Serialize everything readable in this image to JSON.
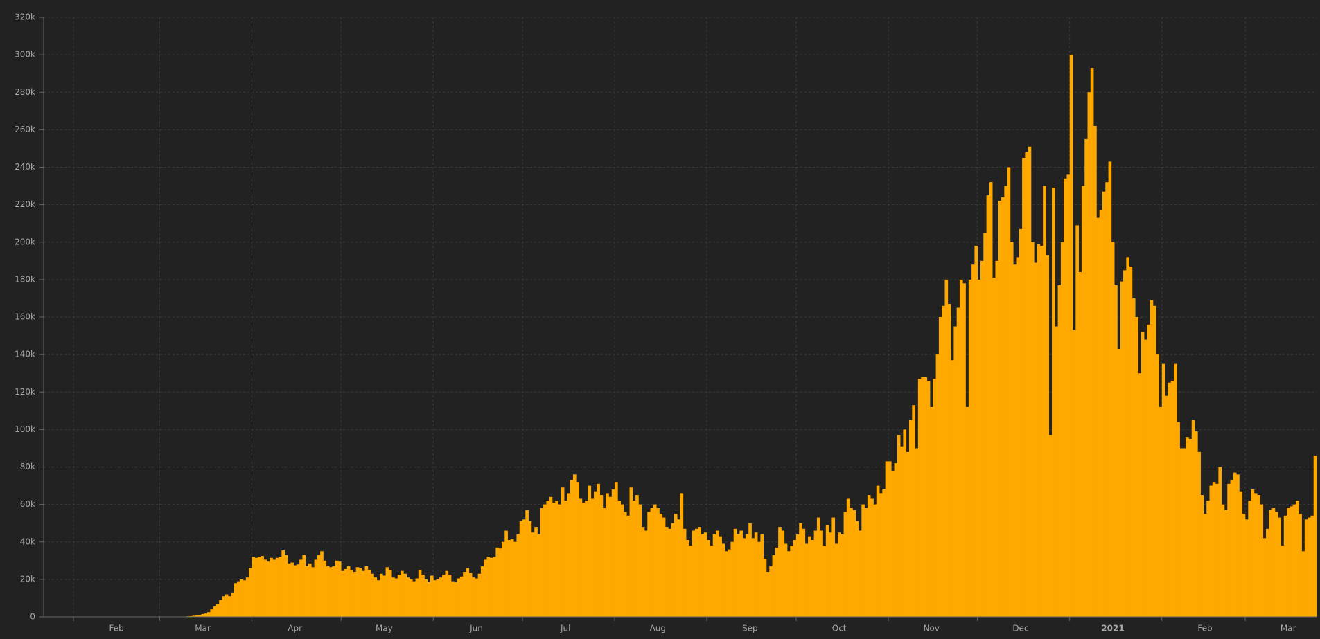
{
  "chart_data": {
    "type": "bar",
    "color": "#fea800",
    "background": "#222222",
    "grid": true,
    "ylim": [
      0,
      320000
    ],
    "yticks": [
      {
        "value": 0,
        "label": "0"
      },
      {
        "value": 20000,
        "label": "20k"
      },
      {
        "value": 40000,
        "label": "40k"
      },
      {
        "value": 60000,
        "label": "60k"
      },
      {
        "value": 80000,
        "label": "80k"
      },
      {
        "value": 100000,
        "label": "100k"
      },
      {
        "value": 120000,
        "label": "120k"
      },
      {
        "value": 140000,
        "label": "140k"
      },
      {
        "value": 160000,
        "label": "160k"
      },
      {
        "value": 180000,
        "label": "180k"
      },
      {
        "value": 200000,
        "label": "200k"
      },
      {
        "value": 220000,
        "label": "220k"
      },
      {
        "value": 240000,
        "label": "240k"
      },
      {
        "value": 260000,
        "label": "260k"
      },
      {
        "value": 280000,
        "label": "280k"
      },
      {
        "value": 300000,
        "label": "300k"
      },
      {
        "value": 320000,
        "label": "320k"
      }
    ],
    "categories": [
      null,
      null,
      null,
      null,
      null,
      null,
      null,
      null,
      null,
      null,
      null,
      null,
      null,
      null,
      null,
      null,
      null,
      null,
      null,
      null,
      null,
      null,
      null,
      null,
      "Feb",
      null,
      null,
      null,
      null,
      null,
      null,
      null,
      null,
      null,
      null,
      null,
      null,
      null,
      null,
      null,
      null,
      null,
      null,
      null,
      null,
      null,
      null,
      null,
      null,
      null,
      null,
      null,
      null,
      "Mar",
      null,
      null,
      null,
      null,
      null,
      null,
      null,
      null,
      null,
      null,
      null,
      null,
      null,
      null,
      null,
      null,
      null,
      null,
      null,
      null,
      null,
      null,
      null,
      null,
      null,
      null,
      null,
      null,
      null,
      null,
      "Apr",
      null,
      null,
      null,
      null,
      null,
      null,
      null,
      null,
      null,
      null,
      null,
      null,
      null,
      null,
      null,
      null,
      null,
      null,
      null,
      null,
      null,
      null,
      null,
      null,
      null,
      null,
      null,
      null,
      null,
      "May",
      null,
      null,
      null,
      null,
      null,
      null,
      null,
      null,
      null,
      null,
      null,
      null,
      null,
      null,
      null,
      null,
      null,
      null,
      null,
      null,
      null,
      null,
      null,
      null,
      null,
      null,
      null,
      null,
      null,
      null,
      "Jun",
      null,
      null,
      null,
      null,
      null,
      null,
      null,
      null,
      null,
      null,
      null,
      null,
      null,
      null,
      null,
      null,
      null,
      null,
      null,
      null,
      null,
      null,
      null,
      null,
      null,
      null,
      null,
      null,
      null,
      "Jul",
      null,
      null,
      null,
      null,
      null,
      null,
      null,
      null,
      null,
      null,
      null,
      null,
      null,
      null,
      null,
      null,
      null,
      null,
      null,
      null,
      null,
      null,
      null,
      null,
      null,
      null,
      null,
      null,
      null,
      null,
      "Aug",
      null,
      null,
      null,
      null,
      null,
      null,
      null,
      null,
      null,
      null,
      null,
      null,
      null,
      null,
      null,
      null,
      null,
      null,
      null,
      null,
      null,
      null,
      null,
      null,
      null,
      null,
      null,
      null,
      null,
      null,
      "Sep",
      null,
      null,
      null,
      null,
      null,
      null,
      null,
      null,
      null,
      null,
      null,
      null,
      null,
      null,
      null,
      null,
      null,
      null,
      null,
      null,
      null,
      null,
      null,
      null,
      null,
      null,
      null,
      null,
      null,
      "Oct",
      null,
      null,
      null,
      null,
      null,
      null,
      null,
      null,
      null,
      null,
      null,
      null,
      null,
      null,
      null,
      null,
      null,
      null,
      null,
      null,
      null,
      null,
      null,
      null,
      null,
      null,
      null,
      null,
      null,
      null,
      "Nov",
      null,
      null,
      null,
      null,
      null,
      null,
      null,
      null,
      null,
      null,
      null,
      null,
      null,
      null,
      null,
      null,
      null,
      null,
      null,
      null,
      null,
      null,
      null,
      null,
      null,
      null,
      null,
      null,
      null,
      "Dec",
      null,
      null,
      null,
      null,
      null,
      null,
      null,
      null,
      null,
      null,
      null,
      null,
      null,
      null,
      null,
      null,
      null,
      null,
      null,
      null,
      null,
      null,
      null,
      null,
      null,
      null,
      null,
      null,
      null,
      null,
      "2021",
      null,
      null,
      null,
      null,
      null,
      null,
      null,
      null,
      null,
      null,
      null,
      null,
      null,
      null,
      null,
      null,
      null,
      null,
      null,
      null,
      null,
      null,
      null,
      null,
      null,
      null,
      null,
      null,
      null,
      null,
      "Feb",
      null,
      null,
      null,
      null,
      null,
      null,
      null,
      null,
      null,
      null,
      null,
      null,
      null,
      null,
      null,
      null,
      null,
      null,
      null,
      null,
      null,
      null,
      null,
      null,
      null,
      null,
      null,
      "Mar",
      null,
      null,
      null,
      null,
      null,
      null,
      null,
      null,
      null
    ],
    "values": [
      0,
      0,
      0,
      0,
      0,
      0,
      0,
      0,
      0,
      0,
      0,
      0,
      0,
      0,
      0,
      0,
      0,
      0,
      0,
      0,
      0,
      0,
      0,
      0,
      0,
      0,
      0,
      0,
      0,
      0,
      0,
      0,
      0,
      0,
      0,
      0,
      0,
      0,
      0,
      0,
      0,
      0,
      0,
      100,
      100,
      100,
      200,
      200,
      300,
      400,
      600,
      800,
      1000,
      1500,
      1800,
      2500,
      4000,
      5500,
      7000,
      9000,
      11000,
      12000,
      11000,
      13000,
      18000,
      19000,
      20000,
      19500,
      21000,
      26000,
      32000,
      31500,
      32000,
      32500,
      30500,
      29500,
      31500,
      30500,
      31500,
      32000,
      35500,
      33000,
      28500,
      29000,
      27500,
      28000,
      30500,
      33000,
      27000,
      28500,
      26500,
      30500,
      33000,
      35000,
      30000,
      27000,
      26500,
      27000,
      30000,
      29500,
      24500,
      25500,
      27000,
      25000,
      24000,
      26500,
      26000,
      24500,
      27000,
      25000,
      23000,
      21000,
      19500,
      23000,
      22000,
      26500,
      25000,
      21000,
      20500,
      22500,
      24500,
      23000,
      21000,
      20000,
      19000,
      20500,
      25000,
      22500,
      20000,
      18500,
      22000,
      19500,
      20000,
      21000,
      22500,
      24500,
      22500,
      19000,
      18500,
      20500,
      21500,
      24000,
      26000,
      23500,
      21000,
      20500,
      23000,
      27000,
      30500,
      32000,
      31500,
      32000,
      37000,
      36500,
      40000,
      46000,
      41000,
      41500,
      40000,
      44000,
      51000,
      52000,
      57000,
      51000,
      45000,
      48000,
      44000,
      58000,
      60000,
      62000,
      64000,
      61000,
      62000,
      60000,
      69000,
      62000,
      66000,
      73000,
      76000,
      72000,
      63000,
      61000,
      62000,
      70000,
      63000,
      67000,
      71000,
      65000,
      58000,
      66000,
      64000,
      68000,
      72000,
      62000,
      60000,
      56000,
      54000,
      69000,
      62000,
      65000,
      60000,
      48000,
      46000,
      56000,
      58000,
      60000,
      58000,
      55000,
      53000,
      48000,
      47000,
      50000,
      55000,
      52000,
      66000,
      47000,
      41000,
      38000,
      46000,
      47000,
      48000,
      44000,
      45000,
      41000,
      38000,
      44000,
      46000,
      43000,
      39000,
      35000,
      36000,
      40000,
      47000,
      44000,
      46000,
      42000,
      44000,
      50000,
      42000,
      45000,
      40000,
      44000,
      31000,
      24000,
      27000,
      33000,
      37000,
      48000,
      46000,
      39000,
      35000,
      38000,
      41000,
      44000,
      50000,
      47000,
      39000,
      43000,
      41000,
      46000,
      53000,
      46000,
      38000,
      49000,
      45000,
      53000,
      39000,
      45000,
      44000,
      56000,
      63000,
      58000,
      57000,
      51000,
      46000,
      60000,
      58000,
      65000,
      63000,
      60000,
      70000,
      66000,
      68000,
      83000,
      83000,
      78000,
      82000,
      97000,
      91000,
      100000,
      88000,
      105000,
      113000,
      90000,
      127000,
      128000,
      128000,
      126000,
      112000,
      127000,
      140000,
      160000,
      166000,
      180000,
      167000,
      137000,
      155000,
      165000,
      180000,
      178000,
      112000,
      180000,
      188000,
      198000,
      180000,
      190000,
      205000,
      225000,
      232000,
      181000,
      190000,
      222000,
      224000,
      230000,
      240000,
      200000,
      188000,
      192000,
      207000,
      245000,
      248000,
      251000,
      200000,
      189000,
      199000,
      198000,
      230000,
      193000,
      97000,
      229000,
      155000,
      177000,
      200000,
      234000,
      236000,
      300000,
      153000,
      209000,
      184000,
      230000,
      255000,
      280000,
      293000,
      262000,
      213000,
      217000,
      227000,
      232000,
      243000,
      200000,
      177000,
      143000,
      179000,
      185000,
      192000,
      187000,
      170000,
      160000,
      130000,
      152000,
      148000,
      156000,
      169000,
      166000,
      140000,
      112000,
      135000,
      118000,
      125000,
      126000,
      135000,
      104000,
      90000,
      90000,
      96000,
      95000,
      105000,
      99000,
      88000,
      65000,
      55000,
      62000,
      70000,
      72000,
      71000,
      80000,
      60000,
      57000,
      71000,
      73000,
      77000,
      76000,
      67000,
      55000,
      52000,
      62000,
      68000,
      66000,
      65000,
      60000,
      42000,
      47000,
      57000,
      58000,
      56000,
      53000,
      38000,
      54000,
      58000,
      59000,
      60000,
      62000,
      55000,
      35000,
      52000,
      53000,
      54000,
      86000
    ]
  }
}
